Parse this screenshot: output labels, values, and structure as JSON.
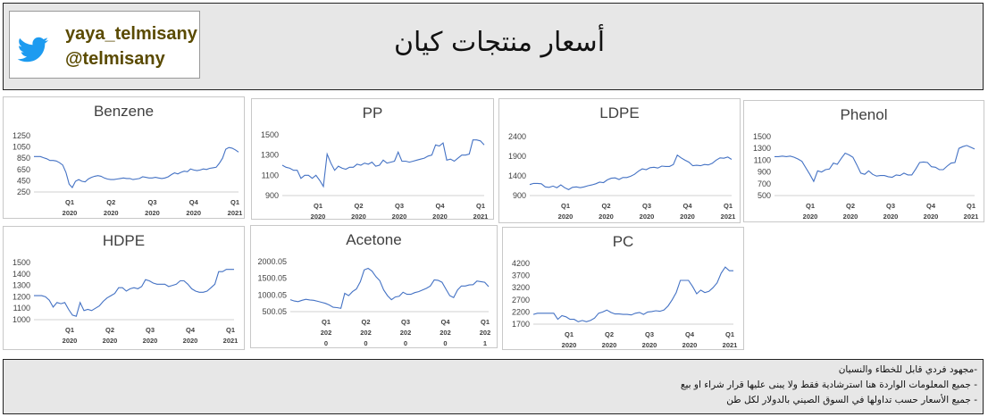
{
  "header": {
    "title": "أسعار منتجات كيان",
    "handle1": "yaya_telmisany",
    "handle2": "@telmisany"
  },
  "footer": {
    "notes": [
      "-مجهود فردي قابل للخطاء والنسيان",
      "- جميع المعلومات الواردة هنا استرشادية فقط ولا يبنى عليها قرار شراء او بيع",
      "- جميع الأسعار حسب تداولها في السوق الصيني بالدولار لكل طن"
    ]
  },
  "colors": {
    "line": "#4472c4",
    "header_bg": "#e7e7e7"
  },
  "chart_data": [
    {
      "id": "benzene",
      "type": "line",
      "title": "Benzene",
      "ylim": [
        250,
        1250
      ],
      "yticks": [
        "1250",
        "1050",
        "850",
        "650",
        "450",
        "250"
      ],
      "xticks": [
        [
          "Q1",
          "2020"
        ],
        [
          "Q2",
          "2020"
        ],
        [
          "Q3",
          "2020"
        ],
        [
          "Q4",
          "2020"
        ],
        [
          "Q1",
          "2021"
        ]
      ],
      "values": [
        880,
        880,
        880,
        860,
        840,
        810,
        810,
        800,
        770,
        730,
        600,
        390,
        330,
        440,
        470,
        440,
        430,
        480,
        510,
        530,
        540,
        530,
        500,
        480,
        470,
        470,
        480,
        490,
        500,
        490,
        490,
        470,
        480,
        490,
        520,
        510,
        500,
        500,
        510,
        500,
        490,
        500,
        520,
        560,
        590,
        570,
        600,
        620,
        610,
        660,
        640,
        630,
        640,
        660,
        650,
        670,
        680,
        690,
        760,
        850,
        1010,
        1040,
        1030,
        1000,
        960
      ]
    },
    {
      "id": "pp",
      "type": "line",
      "title": "PP",
      "ylim": [
        900,
        1500
      ],
      "yticks": [
        "1500",
        "1300",
        "1100",
        "900"
      ],
      "xticks": [
        [
          "Q1",
          "2020"
        ],
        [
          "Q2",
          "2020"
        ],
        [
          "Q3",
          "2020"
        ],
        [
          "Q4",
          "2020"
        ],
        [
          "Q1",
          "2021"
        ]
      ],
      "values": [
        1200,
        1180,
        1170,
        1150,
        1150,
        1070,
        1100,
        1100,
        1070,
        1100,
        1050,
        990,
        1310,
        1220,
        1150,
        1190,
        1170,
        1160,
        1180,
        1180,
        1210,
        1200,
        1220,
        1210,
        1230,
        1190,
        1200,
        1250,
        1220,
        1230,
        1240,
        1330,
        1240,
        1240,
        1230,
        1240,
        1250,
        1260,
        1270,
        1290,
        1300,
        1400,
        1390,
        1420,
        1250,
        1260,
        1240,
        1270,
        1300,
        1300,
        1310,
        1450,
        1450,
        1440,
        1400
      ]
    },
    {
      "id": "ldpe",
      "type": "line",
      "title": "LDPE",
      "ylim": [
        900,
        2400
      ],
      "yticks": [
        "2400",
        "1900",
        "1400",
        "900"
      ],
      "xticks": [
        [
          "Q1",
          "2020"
        ],
        [
          "Q2",
          "2020"
        ],
        [
          "Q3",
          "2020"
        ],
        [
          "Q4",
          "2020"
        ],
        [
          "Q1",
          "2021"
        ]
      ],
      "values": [
        1180,
        1210,
        1210,
        1200,
        1120,
        1110,
        1140,
        1100,
        1170,
        1100,
        1050,
        1110,
        1120,
        1100,
        1120,
        1150,
        1170,
        1200,
        1240,
        1230,
        1300,
        1340,
        1350,
        1310,
        1360,
        1360,
        1390,
        1440,
        1520,
        1580,
        1560,
        1610,
        1620,
        1600,
        1650,
        1640,
        1640,
        1690,
        1930,
        1860,
        1800,
        1750,
        1660,
        1670,
        1660,
        1690,
        1680,
        1720,
        1800,
        1860,
        1850,
        1880,
        1820
      ]
    },
    {
      "id": "phenol",
      "type": "line",
      "title": "Phenol",
      "ylim": [
        500,
        1500
      ],
      "yticks": [
        "1500",
        "1300",
        "1100",
        "900",
        "700",
        "500"
      ],
      "xticks": [
        [
          "Q1",
          "2020"
        ],
        [
          "Q2",
          "2020"
        ],
        [
          "Q3",
          "2020"
        ],
        [
          "Q4",
          "2020"
        ],
        [
          "Q1",
          "2021"
        ]
      ],
      "values": [
        1160,
        1160,
        1170,
        1160,
        1170,
        1150,
        1120,
        1080,
        970,
        860,
        740,
        920,
        900,
        940,
        950,
        1050,
        1030,
        1130,
        1220,
        1190,
        1150,
        1020,
        880,
        860,
        920,
        860,
        830,
        840,
        840,
        820,
        810,
        850,
        840,
        880,
        850,
        850,
        950,
        1060,
        1070,
        1060,
        990,
        980,
        940,
        940,
        1000,
        1050,
        1060,
        1300,
        1330,
        1350,
        1320,
        1290
      ]
    },
    {
      "id": "hdpe",
      "type": "line",
      "title": "HDPE",
      "ylim": [
        1000,
        1500
      ],
      "yticks": [
        "1500",
        "1400",
        "1300",
        "1200",
        "1100",
        "1000"
      ],
      "xticks": [
        [
          "Q1",
          "2020"
        ],
        [
          "Q2",
          "2020"
        ],
        [
          "Q3",
          "2020"
        ],
        [
          "Q4",
          "2020"
        ],
        [
          "Q1",
          "2021"
        ]
      ],
      "values": [
        1210,
        1210,
        1210,
        1200,
        1170,
        1110,
        1150,
        1140,
        1150,
        1090,
        1040,
        1030,
        1150,
        1080,
        1090,
        1080,
        1100,
        1120,
        1160,
        1190,
        1210,
        1230,
        1280,
        1280,
        1250,
        1270,
        1280,
        1270,
        1290,
        1350,
        1340,
        1320,
        1310,
        1310,
        1310,
        1290,
        1300,
        1310,
        1340,
        1340,
        1310,
        1270,
        1250,
        1240,
        1240,
        1250,
        1280,
        1310,
        1420,
        1420,
        1440,
        1440,
        1440
      ]
    },
    {
      "id": "acetone",
      "type": "line",
      "title": "Acetone",
      "ylim": [
        500.05,
        2000.05
      ],
      "yticks": [
        "2000.05",
        "1500.05",
        "1000.05",
        "500.05"
      ],
      "xticks": [
        [
          "Q1",
          "202",
          "0"
        ],
        [
          "Q2",
          "202",
          "0"
        ],
        [
          "Q3",
          "202",
          "0"
        ],
        [
          "Q4",
          "202",
          "0"
        ],
        [
          "Q1",
          "202",
          "1"
        ]
      ],
      "values": [
        860,
        820,
        800,
        840,
        870,
        850,
        840,
        810,
        780,
        750,
        700,
        630,
        620,
        600,
        1050,
        980,
        1100,
        1180,
        1400,
        1750,
        1800,
        1720,
        1550,
        1430,
        1150,
        980,
        860,
        940,
        960,
        1080,
        1020,
        1020,
        1070,
        1100,
        1150,
        1200,
        1270,
        1450,
        1440,
        1380,
        1180,
        980,
        920,
        1150,
        1270,
        1270,
        1300,
        1310,
        1420,
        1400,
        1380,
        1250
      ]
    },
    {
      "id": "pc",
      "type": "line",
      "title": "PC",
      "ylim": [
        1700,
        4200
      ],
      "yticks": [
        "4200",
        "3700",
        "3200",
        "2700",
        "2200",
        "1700"
      ],
      "xticks": [
        [
          "Q1",
          "2020"
        ],
        [
          "Q2",
          "2020"
        ],
        [
          "Q3",
          "2020"
        ],
        [
          "Q4",
          "2020"
        ],
        [
          "Q1",
          "2021"
        ]
      ],
      "values": [
        2100,
        2150,
        2150,
        2150,
        2150,
        2150,
        1900,
        2050,
        2000,
        1900,
        1900,
        1800,
        1850,
        1800,
        1850,
        1950,
        2150,
        2200,
        2280,
        2180,
        2120,
        2120,
        2100,
        2100,
        2080,
        2150,
        2180,
        2100,
        2200,
        2220,
        2250,
        2230,
        2280,
        2450,
        2700,
        3000,
        3500,
        3500,
        3500,
        3250,
        2950,
        3100,
        3000,
        3050,
        3200,
        3400,
        3800,
        4050,
        3900,
        3900
      ]
    }
  ]
}
